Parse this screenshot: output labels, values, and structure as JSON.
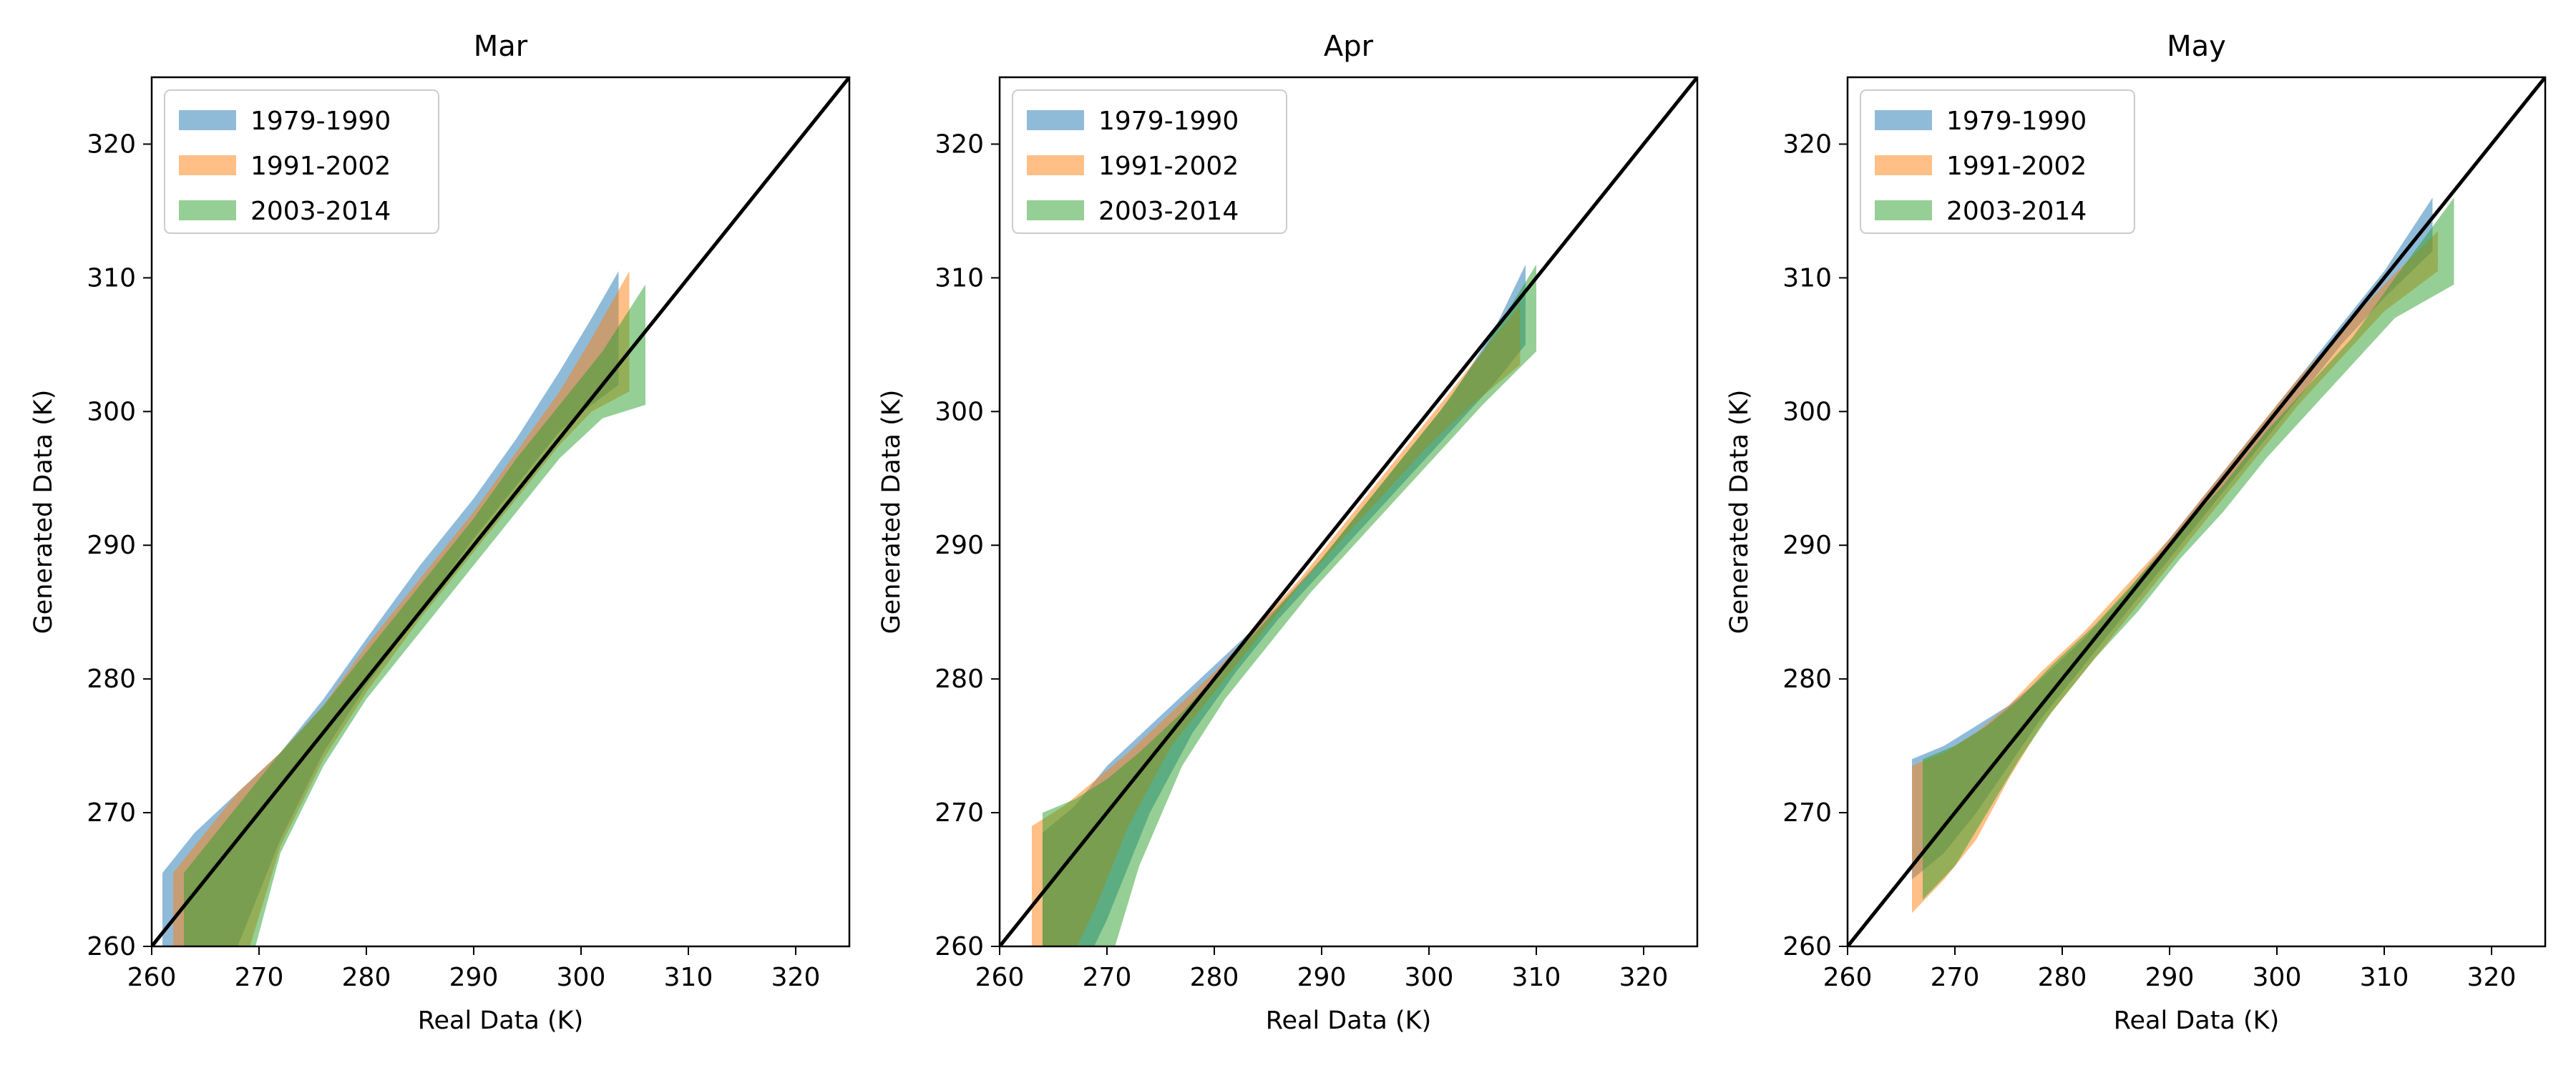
{
  "chart_data": [
    {
      "type": "area",
      "title": "Mar",
      "xlabel": "Real Data (K)",
      "ylabel": "Generated Data (K)",
      "xlim": [
        260,
        325
      ],
      "ylim": [
        260,
        325
      ],
      "xticks": [
        "260",
        "270",
        "280",
        "290",
        "300",
        "310",
        "320"
      ],
      "yticks": [
        "260",
        "270",
        "280",
        "290",
        "300",
        "310",
        "320"
      ],
      "grid": false,
      "legend_position": "top-left",
      "reference_line": "y = x",
      "series": [
        {
          "name": "1979-1990",
          "color": "#1f77b4",
          "x": [
            261,
            264,
            268,
            272,
            276,
            280,
            285,
            290,
            294,
            298,
            301,
            303.5
          ],
          "lower": [
            255,
            255,
            260,
            268,
            274.5,
            279.5,
            285,
            290.5,
            294.5,
            298.5,
            300.5,
            302
          ],
          "upper": [
            265.5,
            268.5,
            271.5,
            274.5,
            278.5,
            283,
            288.5,
            293.5,
            298,
            303,
            307,
            310.5
          ]
        },
        {
          "name": "1991-2002",
          "color": "#ff7f0e",
          "x": [
            262,
            265,
            268,
            272,
            276,
            280,
            285,
            290,
            294,
            298,
            301,
            304.5
          ],
          "lower": [
            255,
            255,
            257,
            267.5,
            274,
            279,
            284.5,
            289.5,
            293.5,
            297.5,
            300,
            301.5
          ],
          "upper": [
            265.5,
            268.5,
            271.5,
            274.5,
            278,
            282.5,
            287.5,
            292.5,
            297,
            301.5,
            305.5,
            310.5
          ]
        },
        {
          "name": "2003-2014",
          "color": "#2ca02c",
          "x": [
            263,
            266,
            269,
            272,
            276,
            280,
            285,
            290,
            294,
            298,
            302,
            306
          ],
          "lower": [
            255,
            255,
            258,
            267,
            273.5,
            278.5,
            283.5,
            288.5,
            292.5,
            296.5,
            299.5,
            300.5
          ],
          "upper": [
            265.5,
            268.5,
            271.5,
            274.5,
            278,
            282,
            287,
            292,
            296.5,
            300.5,
            304.5,
            309.5
          ]
        }
      ]
    },
    {
      "type": "area",
      "title": "Apr",
      "xlabel": "Real Data (K)",
      "ylabel": "Generated Data (K)",
      "xlim": [
        260,
        325
      ],
      "ylim": [
        260,
        325
      ],
      "xticks": [
        "260",
        "270",
        "280",
        "290",
        "300",
        "310",
        "320"
      ],
      "yticks": [
        "260",
        "270",
        "280",
        "290",
        "300",
        "310",
        "320"
      ],
      "grid": false,
      "legend_position": "top-left",
      "reference_line": "y = x",
      "series": [
        {
          "name": "1979-1990",
          "color": "#1f77b4",
          "x": [
            264,
            267,
            270,
            274,
            278,
            282,
            286,
            290,
            294,
            298,
            302,
            306,
            309
          ],
          "lower": [
            255,
            257,
            262,
            270,
            276,
            280.5,
            284.5,
            288,
            291.5,
            295,
            298.5,
            302,
            305
          ],
          "upper": [
            268.5,
            270.5,
            273.5,
            276.5,
            279.5,
            282.5,
            285.5,
            289,
            293,
            297,
            301,
            306,
            311
          ]
        },
        {
          "name": "1991-2002",
          "color": "#ff7f0e",
          "x": [
            263,
            266,
            269,
            272,
            276,
            280,
            284,
            288,
            292,
            296,
            300,
            304,
            308.5
          ],
          "lower": [
            255,
            258,
            263,
            269,
            275,
            279,
            283,
            287,
            290.5,
            294,
            297.5,
            300.5,
            303.5
          ],
          "upper": [
            269,
            270.5,
            272.5,
            274.5,
            277.5,
            280.5,
            284,
            287.5,
            291.5,
            295.5,
            299.5,
            303.5,
            308
          ]
        },
        {
          "name": "2003-2014",
          "color": "#2ca02c",
          "x": [
            264,
            267,
            270,
            273,
            277,
            281,
            285,
            289,
            293,
            297,
            301,
            305,
            310
          ],
          "lower": [
            255,
            255,
            258,
            266,
            273.5,
            278.5,
            282.5,
            286.5,
            290,
            293.5,
            297,
            300.5,
            304.5
          ],
          "upper": [
            270,
            271,
            272.5,
            274.5,
            277.5,
            281,
            284.5,
            288,
            292,
            296,
            300,
            304.5,
            311
          ]
        }
      ]
    },
    {
      "type": "area",
      "title": "May",
      "xlabel": "Real Data (K)",
      "ylabel": "Generated Data (K)",
      "xlim": [
        260,
        325
      ],
      "ylim": [
        260,
        325
      ],
      "xticks": [
        "260",
        "270",
        "280",
        "290",
        "300",
        "310",
        "320"
      ],
      "yticks": [
        "260",
        "270",
        "280",
        "290",
        "300",
        "310",
        "320"
      ],
      "grid": false,
      "legend_position": "top-left",
      "reference_line": "y = x",
      "series": [
        {
          "name": "1979-1990",
          "color": "#1f77b4",
          "x": [
            266,
            269,
            272,
            275,
            278,
            282,
            286,
            290,
            294,
            298,
            302,
            306,
            310,
            314.5
          ],
          "lower": [
            265,
            267,
            270,
            273.5,
            277,
            281,
            285,
            289,
            293,
            297,
            301,
            305,
            308.5,
            312
          ],
          "upper": [
            274,
            275,
            276.5,
            278,
            280,
            283,
            286.5,
            290.5,
            294.5,
            298.5,
            302.5,
            306.5,
            310.5,
            316
          ]
        },
        {
          "name": "1991-2002",
          "color": "#ff7f0e",
          "x": [
            266,
            269,
            272,
            275,
            278,
            282,
            286,
            290,
            294,
            298,
            302,
            306,
            310,
            315
          ],
          "lower": [
            262.5,
            265,
            268,
            272.5,
            276.5,
            280.5,
            284.5,
            288.5,
            292.5,
            296.5,
            300.5,
            304,
            307.5,
            310.5
          ],
          "upper": [
            273.5,
            274.5,
            276,
            278,
            280.5,
            283.5,
            287,
            290.5,
            294.5,
            298.5,
            302.5,
            306,
            309.5,
            313.5
          ]
        },
        {
          "name": "2003-2014",
          "color": "#2ca02c",
          "x": [
            267,
            270,
            273,
            276,
            279,
            283,
            287,
            291,
            295,
            299,
            303,
            307,
            311,
            316.5
          ],
          "lower": [
            263.5,
            266,
            270,
            274,
            277.5,
            281.5,
            285,
            289,
            292.5,
            296.5,
            300,
            303.5,
            307,
            309.5
          ],
          "upper": [
            274,
            275,
            276.5,
            278.5,
            281,
            284,
            287.5,
            291,
            294.5,
            298.5,
            302,
            305.5,
            310,
            316
          ]
        }
      ]
    }
  ]
}
